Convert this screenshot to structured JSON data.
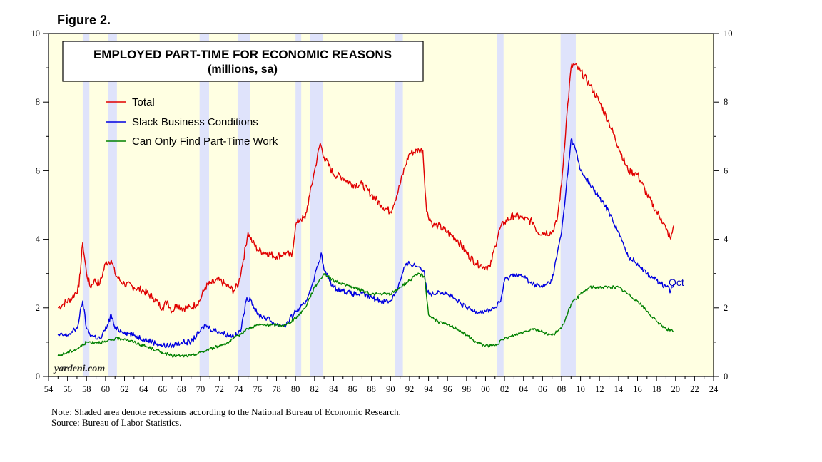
{
  "figure_label": "Figure 2.",
  "watermark": "yardeni.com",
  "notes": {
    "line1": "Note: Shaded area denote recessions according to the National Bureau of Economic Research.",
    "line2": "Source: Bureau of Labor Statistics."
  },
  "chart_data": {
    "type": "line",
    "title": "EMPLOYED PART-TIME FOR ECONOMIC REASONS",
    "subtitle": "(millions, sa)",
    "xlabel": "",
    "ylabel": "",
    "xlim": [
      1954,
      2024
    ],
    "ylim": [
      0,
      10
    ],
    "x_ticks": [
      1954,
      1956,
      1958,
      1960,
      1962,
      1964,
      1966,
      1968,
      1970,
      1972,
      1974,
      1976,
      1978,
      1980,
      1982,
      1984,
      1986,
      1988,
      1990,
      1992,
      1994,
      1996,
      1998,
      2000,
      2002,
      2004,
      2006,
      2008,
      2010,
      2012,
      2014,
      2016,
      2018,
      2020,
      2022,
      2024
    ],
    "x_tick_labels": [
      "54",
      "56",
      "58",
      "60",
      "62",
      "64",
      "66",
      "68",
      "70",
      "72",
      "74",
      "76",
      "78",
      "80",
      "82",
      "84",
      "86",
      "88",
      "90",
      "92",
      "94",
      "96",
      "98",
      "00",
      "02",
      "04",
      "06",
      "08",
      "10",
      "12",
      "14",
      "16",
      "18",
      "20",
      "22",
      "24"
    ],
    "y_ticks": [
      0,
      2,
      4,
      6,
      8,
      10
    ],
    "y_tick_labels": [
      "0",
      "2",
      "4",
      "6",
      "8",
      "10"
    ],
    "legend_position": "top-left",
    "recessions": [
      [
        1957.6,
        1958.3
      ],
      [
        1960.3,
        1961.2
      ],
      [
        1969.9,
        1970.9
      ],
      [
        1973.9,
        1975.2
      ],
      [
        1980.0,
        1980.6
      ],
      [
        1981.5,
        1982.9
      ],
      [
        1990.5,
        1991.3
      ],
      [
        2001.2,
        2001.9
      ],
      [
        2007.9,
        2009.5
      ]
    ],
    "end_annotation": "Oct",
    "series": [
      {
        "name": "Total",
        "color": "#e00000",
        "x": [
          1955.0,
          1955.5,
          1956.5,
          1957.2,
          1957.6,
          1958.0,
          1958.4,
          1958.8,
          1959.4,
          1960.0,
          1960.6,
          1961.0,
          1961.5,
          1962.0,
          1963.0,
          1964.0,
          1965.0,
          1966.0,
          1966.5,
          1967.0,
          1967.5,
          1968.0,
          1969.0,
          1969.9,
          1970.5,
          1971.0,
          1972.0,
          1972.5,
          1973.0,
          1973.5,
          1974.0,
          1974.5,
          1975.0,
          1975.5,
          1976.0,
          1977.0,
          1978.0,
          1979.0,
          1979.6,
          1980.0,
          1980.5,
          1981.0,
          1981.5,
          1982.0,
          1982.6,
          1983.0,
          1984.0,
          1985.0,
          1986.0,
          1987.0,
          1988.0,
          1989.0,
          1990.0,
          1990.8,
          1991.5,
          1992.0,
          1993.0,
          1993.4,
          1993.8,
          1994.5,
          1995.0,
          1996.0,
          1997.0,
          1998.0,
          1999.0,
          2000.0,
          2000.5,
          2001.0,
          2001.5,
          2002.0,
          2003.0,
          2004.0,
          2005.0,
          2005.5,
          2006.0,
          2007.0,
          2007.5,
          2008.0,
          2008.5,
          2009.0,
          2009.3,
          2010.0,
          2011.0,
          2012.0,
          2013.0,
          2014.0,
          2015.0,
          2016.0,
          2017.0,
          2018.0,
          2018.5,
          2019.0,
          2019.5,
          2019.8
        ],
        "y": [
          2.0,
          2.1,
          2.3,
          2.6,
          3.9,
          3.0,
          2.6,
          2.8,
          2.7,
          3.3,
          3.4,
          3.0,
          2.8,
          2.7,
          2.6,
          2.5,
          2.3,
          2.0,
          2.2,
          1.9,
          2.1,
          2.0,
          2.0,
          2.2,
          2.6,
          2.7,
          2.8,
          2.7,
          2.6,
          2.5,
          2.7,
          3.4,
          4.2,
          3.9,
          3.7,
          3.6,
          3.5,
          3.6,
          3.5,
          4.4,
          4.6,
          4.6,
          5.3,
          6.0,
          6.8,
          6.4,
          5.9,
          5.8,
          5.6,
          5.6,
          5.3,
          5.0,
          4.8,
          5.4,
          6.1,
          6.5,
          6.6,
          6.6,
          4.8,
          4.4,
          4.4,
          4.2,
          4.0,
          3.6,
          3.3,
          3.2,
          3.2,
          3.8,
          4.3,
          4.5,
          4.7,
          4.6,
          4.5,
          4.2,
          4.2,
          4.2,
          4.5,
          5.6,
          7.4,
          9.0,
          9.1,
          8.9,
          8.5,
          8.0,
          7.4,
          6.7,
          6.0,
          5.9,
          5.3,
          4.8,
          4.6,
          4.3,
          4.0,
          4.4
        ]
      },
      {
        "name": "Slack Business Conditions",
        "color": "#0000e0",
        "x": [
          1955.0,
          1956.0,
          1957.0,
          1957.6,
          1958.0,
          1958.5,
          1959.5,
          1960.2,
          1960.6,
          1961.0,
          1962.0,
          1963.0,
          1964.0,
          1965.0,
          1966.0,
          1967.0,
          1968.0,
          1969.0,
          1969.9,
          1970.5,
          1971.0,
          1972.0,
          1973.0,
          1973.8,
          1974.3,
          1974.8,
          1975.2,
          1976.0,
          1977.0,
          1978.0,
          1979.0,
          1980.0,
          1980.5,
          1981.0,
          1981.5,
          1982.0,
          1982.7,
          1983.0,
          1984.0,
          1985.0,
          1986.0,
          1987.0,
          1988.0,
          1989.0,
          1990.0,
          1990.8,
          1991.5,
          1992.0,
          1993.0,
          1993.5,
          1993.8,
          1994.5,
          1995.0,
          1996.0,
          1997.0,
          1998.0,
          1999.0,
          2000.0,
          2001.0,
          2001.6,
          2002.0,
          2003.0,
          2004.0,
          2005.0,
          2006.0,
          2007.0,
          2008.0,
          2008.5,
          2009.0,
          2009.3,
          2010.0,
          2011.0,
          2012.0,
          2013.0,
          2014.0,
          2015.0,
          2016.0,
          2017.0,
          2018.0,
          2018.5,
          2019.0,
          2019.5,
          2019.8
        ],
        "y": [
          1.2,
          1.2,
          1.4,
          2.2,
          1.4,
          1.2,
          1.1,
          1.5,
          1.8,
          1.4,
          1.3,
          1.2,
          1.1,
          1.0,
          0.9,
          0.9,
          1.0,
          1.0,
          1.3,
          1.5,
          1.4,
          1.3,
          1.2,
          1.2,
          1.4,
          2.2,
          2.3,
          1.8,
          1.7,
          1.5,
          1.5,
          1.9,
          2.0,
          2.1,
          2.5,
          2.9,
          3.6,
          3.1,
          2.6,
          2.5,
          2.4,
          2.4,
          2.3,
          2.2,
          2.2,
          2.6,
          3.2,
          3.3,
          3.2,
          3.1,
          2.5,
          2.4,
          2.5,
          2.4,
          2.2,
          2.0,
          1.9,
          1.9,
          2.0,
          2.2,
          2.8,
          3.0,
          2.9,
          2.7,
          2.6,
          2.8,
          4.2,
          5.5,
          6.9,
          6.8,
          6.0,
          5.6,
          5.2,
          4.8,
          4.2,
          3.5,
          3.3,
          3.0,
          2.8,
          2.7,
          2.6,
          2.5,
          2.7
        ]
      },
      {
        "name": "Can Only Find Part-Time Work",
        "color": "#008000",
        "x": [
          1955.0,
          1956.0,
          1957.0,
          1958.0,
          1959.0,
          1960.0,
          1961.0,
          1962.0,
          1963.0,
          1964.0,
          1965.0,
          1966.0,
          1967.0,
          1968.0,
          1969.0,
          1970.0,
          1971.0,
          1972.0,
          1973.0,
          1974.0,
          1975.0,
          1976.0,
          1977.0,
          1978.0,
          1979.0,
          1980.0,
          1981.0,
          1982.0,
          1983.0,
          1984.0,
          1985.0,
          1986.0,
          1987.0,
          1988.0,
          1989.0,
          1990.0,
          1991.0,
          1992.0,
          1993.0,
          1993.6,
          1994.0,
          1995.0,
          1996.0,
          1997.0,
          1998.0,
          1999.0,
          2000.0,
          2001.0,
          2002.0,
          2003.0,
          2004.0,
          2005.0,
          2006.0,
          2007.0,
          2008.0,
          2009.0,
          2010.0,
          2011.0,
          2012.0,
          2013.0,
          2014.0,
          2015.0,
          2016.0,
          2017.0,
          2018.0,
          2019.0,
          2019.8
        ],
        "y": [
          0.6,
          0.7,
          0.8,
          1.0,
          1.0,
          1.0,
          1.1,
          1.1,
          1.0,
          0.9,
          0.8,
          0.7,
          0.6,
          0.6,
          0.6,
          0.7,
          0.8,
          0.9,
          1.0,
          1.2,
          1.4,
          1.5,
          1.5,
          1.5,
          1.5,
          1.7,
          2.0,
          2.6,
          3.0,
          2.8,
          2.7,
          2.6,
          2.5,
          2.4,
          2.4,
          2.4,
          2.6,
          2.8,
          3.0,
          2.9,
          1.8,
          1.6,
          1.5,
          1.4,
          1.2,
          1.0,
          0.9,
          0.9,
          1.1,
          1.2,
          1.3,
          1.4,
          1.3,
          1.2,
          1.4,
          2.1,
          2.4,
          2.6,
          2.6,
          2.6,
          2.6,
          2.4,
          2.2,
          1.9,
          1.6,
          1.4,
          1.3
        ]
      }
    ]
  }
}
